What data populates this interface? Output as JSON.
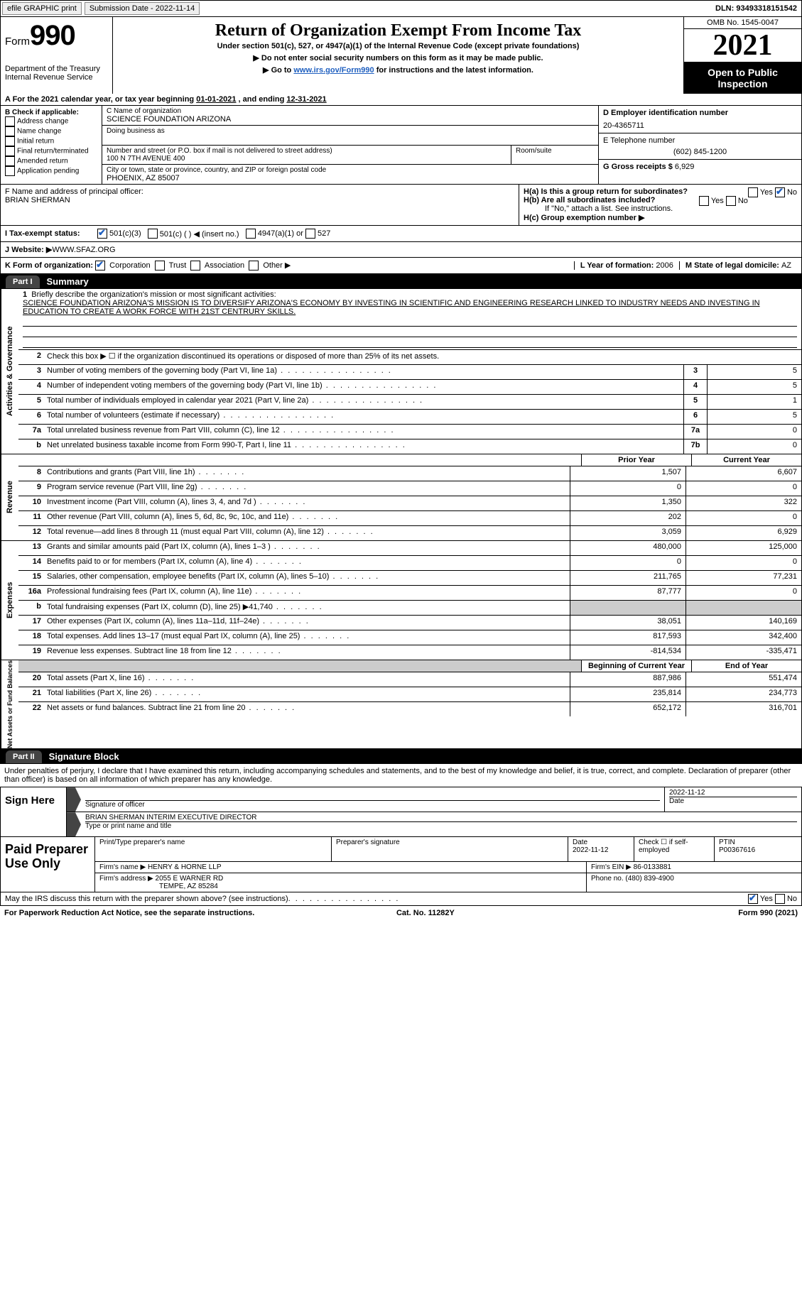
{
  "topbar": {
    "efile": "efile GRAPHIC print",
    "submission_label": "Submission Date - ",
    "submission_date": "2022-11-14",
    "dln_label": "DLN: ",
    "dln": "93493318151542"
  },
  "header": {
    "form_word": "Form",
    "form_num": "990",
    "dept": "Department of the Treasury",
    "irs": "Internal Revenue Service",
    "title": "Return of Organization Exempt From Income Tax",
    "subtitle": "Under section 501(c), 527, or 4947(a)(1) of the Internal Revenue Code (except private foundations)",
    "arrow1": "▶ Do not enter social security numbers on this form as it may be made public.",
    "arrow2_a": "▶ Go to ",
    "arrow2_link": "www.irs.gov/Form990",
    "arrow2_b": " for instructions and the latest information.",
    "omb": "OMB No. 1545-0047",
    "year": "2021",
    "public1": "Open to Public",
    "public2": "Inspection"
  },
  "lineA": {
    "a": "A For the 2021 calendar year, or tax year beginning ",
    "begin": "01-01-2021",
    "mid": " , and ending ",
    "end": "12-31-2021"
  },
  "boxB": {
    "label": "B Check if applicable:",
    "items": [
      "Address change",
      "Name change",
      "Initial return",
      "Final return/terminated",
      "Amended return",
      "Application pending"
    ]
  },
  "boxC": {
    "name_label": "C Name of organization",
    "name": "SCIENCE FOUNDATION ARIZONA",
    "dba_label": "Doing business as",
    "addr_label": "Number and street (or P.O. box if mail is not delivered to street address)",
    "room_label": "Room/suite",
    "addr": "100 N 7TH AVENUE 400",
    "city_label": "City or town, state or province, country, and ZIP or foreign postal code",
    "city": "PHOENIX, AZ  85007"
  },
  "boxD": {
    "label": "D Employer identification number",
    "val": "20-4365711"
  },
  "boxE": {
    "label": "E Telephone number",
    "val": "(602) 845-1200"
  },
  "boxG": {
    "label": "G Gross receipts $ ",
    "val": "6,929"
  },
  "boxF": {
    "label": "F  Name and address of principal officer:",
    "name": "BRIAN SHERMAN"
  },
  "boxH": {
    "ha": "H(a)  Is this a group return for subordinates?",
    "hb": "H(b)  Are all subordinates included?",
    "hb_note": "If \"No,\" attach a list. See instructions.",
    "hc": "H(c)  Group exemption number ▶",
    "yes": "Yes",
    "no": "No"
  },
  "taxI": {
    "label": "I   Tax-exempt status:",
    "opts": [
      "501(c)(3)",
      "501(c) (  ) ◀ (insert no.)",
      "4947(a)(1) or",
      "527"
    ],
    "checked": 0
  },
  "webJ": {
    "label": "J   Website: ▶  ",
    "val": "WWW.SFAZ.ORG"
  },
  "lineK": {
    "label": "K Form of organization:",
    "opts": [
      "Corporation",
      "Trust",
      "Association",
      "Other ▶"
    ],
    "checked": 0,
    "L": "L Year of formation: ",
    "Lval": "2006",
    "M": "M State of legal domicile: ",
    "Mval": "AZ"
  },
  "part1": {
    "tab": "Part I",
    "title": "Summary"
  },
  "summary": {
    "q1_a": "Briefly describe the organization's mission or most significant activities:",
    "q1_b": "SCIENCE FOUNDATION ARIZONA'S MISSION IS TO DIVERSIFY ARIZONA'S ECONOMY BY INVESTING IN SCIENTIFIC AND ENGINEERING RESEARCH LINKED TO INDUSTRY NEEDS AND INVESTING IN EDUCATION TO CREATE A WORK FORCE WITH 21ST CENTRURY SKILLS.",
    "q2": "Check this box ▶ ☐ if the organization discontinued its operations or disposed of more than 25% of its net assets.",
    "rows_ag": [
      {
        "n": "3",
        "d": "Number of voting members of the governing body (Part VI, line 1a)",
        "box": "3",
        "v": "5"
      },
      {
        "n": "4",
        "d": "Number of independent voting members of the governing body (Part VI, line 1b)",
        "box": "4",
        "v": "5"
      },
      {
        "n": "5",
        "d": "Total number of individuals employed in calendar year 2021 (Part V, line 2a)",
        "box": "5",
        "v": "1"
      },
      {
        "n": "6",
        "d": "Total number of volunteers (estimate if necessary)",
        "box": "6",
        "v": "5"
      },
      {
        "n": "7a",
        "d": "Total unrelated business revenue from Part VIII, column (C), line 12",
        "box": "7a",
        "v": "0"
      },
      {
        "n": "b",
        "d": "Net unrelated business taxable income from Form 990-T, Part I, line 11",
        "box": "7b",
        "v": "0"
      }
    ],
    "col_h1": "Prior Year",
    "col_h2": "Current Year",
    "rev": [
      {
        "n": "8",
        "d": "Contributions and grants (Part VIII, line 1h)",
        "p": "1,507",
        "c": "6,607"
      },
      {
        "n": "9",
        "d": "Program service revenue (Part VIII, line 2g)",
        "p": "0",
        "c": "0"
      },
      {
        "n": "10",
        "d": "Investment income (Part VIII, column (A), lines 3, 4, and 7d )",
        "p": "1,350",
        "c": "322"
      },
      {
        "n": "11",
        "d": "Other revenue (Part VIII, column (A), lines 5, 6d, 8c, 9c, 10c, and 11e)",
        "p": "202",
        "c": "0"
      },
      {
        "n": "12",
        "d": "Total revenue—add lines 8 through 11 (must equal Part VIII, column (A), line 12)",
        "p": "3,059",
        "c": "6,929"
      }
    ],
    "exp": [
      {
        "n": "13",
        "d": "Grants and similar amounts paid (Part IX, column (A), lines 1–3 )",
        "p": "480,000",
        "c": "125,000"
      },
      {
        "n": "14",
        "d": "Benefits paid to or for members (Part IX, column (A), line 4)",
        "p": "0",
        "c": "0"
      },
      {
        "n": "15",
        "d": "Salaries, other compensation, employee benefits (Part IX, column (A), lines 5–10)",
        "p": "211,765",
        "c": "77,231"
      },
      {
        "n": "16a",
        "d": "Professional fundraising fees (Part IX, column (A), line 11e)",
        "p": "87,777",
        "c": "0"
      },
      {
        "n": "b",
        "d": "Total fundraising expenses (Part IX, column (D), line 25) ▶41,740",
        "p": "",
        "c": "",
        "grey": true
      },
      {
        "n": "17",
        "d": "Other expenses (Part IX, column (A), lines 11a–11d, 11f–24e)",
        "p": "38,051",
        "c": "140,169"
      },
      {
        "n": "18",
        "d": "Total expenses. Add lines 13–17 (must equal Part IX, column (A), line 25)",
        "p": "817,593",
        "c": "342,400"
      },
      {
        "n": "19",
        "d": "Revenue less expenses. Subtract line 18 from line 12",
        "p": "-814,534",
        "c": "-335,471"
      }
    ],
    "na_h1": "Beginning of Current Year",
    "na_h2": "End of Year",
    "na": [
      {
        "n": "20",
        "d": "Total assets (Part X, line 16)",
        "p": "887,986",
        "c": "551,474"
      },
      {
        "n": "21",
        "d": "Total liabilities (Part X, line 26)",
        "p": "235,814",
        "c": "234,773"
      },
      {
        "n": "22",
        "d": "Net assets or fund balances. Subtract line 21 from line 20",
        "p": "652,172",
        "c": "316,701"
      }
    ],
    "vtabs": [
      "Activities & Governance",
      "Revenue",
      "Expenses",
      "Net Assets or Fund Balances"
    ]
  },
  "part2": {
    "tab": "Part II",
    "title": "Signature Block"
  },
  "sig": {
    "decl": "Under penalties of perjury, I declare that I have examined this return, including accompanying schedules and statements, and to the best of my knowledge and belief, it is true, correct, and complete. Declaration of preparer (other than officer) is based on all information of which preparer has any knowledge.",
    "sign_here": "Sign Here",
    "sig_officer": "Signature of officer",
    "sig_date": "2022-11-12",
    "date_label": "Date",
    "officer": "BRIAN SHERMAN  INTERIM EXECUTIVE DIRECTOR",
    "type_label": "Type or print name and title"
  },
  "prep": {
    "label": "Paid Preparer Use Only",
    "h1": "Print/Type preparer's name",
    "h2": "Preparer's signature",
    "h3_l": "Date",
    "h3": "2022-11-12",
    "h4": "Check ☐ if self-employed",
    "h5_l": "PTIN",
    "h5": "P00367616",
    "firm_l": "Firm's name    ▶ ",
    "firm": "HENRY & HORNE LLP",
    "ein_l": "Firm's EIN ▶ ",
    "ein": "86-0133881",
    "addr_l": "Firm's address ▶ ",
    "addr1": "2055 E WARNER RD",
    "addr2": "TEMPE, AZ  85284",
    "phone_l": "Phone no. ",
    "phone": "(480) 839-4900"
  },
  "footer": {
    "discuss": "May the IRS discuss this return with the preparer shown above? (see instructions)",
    "yes": "Yes",
    "no": "No",
    "paperwork": "For Paperwork Reduction Act Notice, see the separate instructions.",
    "cat": "Cat. No. 11282Y",
    "form": "Form 990 (2021)"
  },
  "colors": {
    "link": "#2060c0",
    "check": "#2060c0"
  }
}
